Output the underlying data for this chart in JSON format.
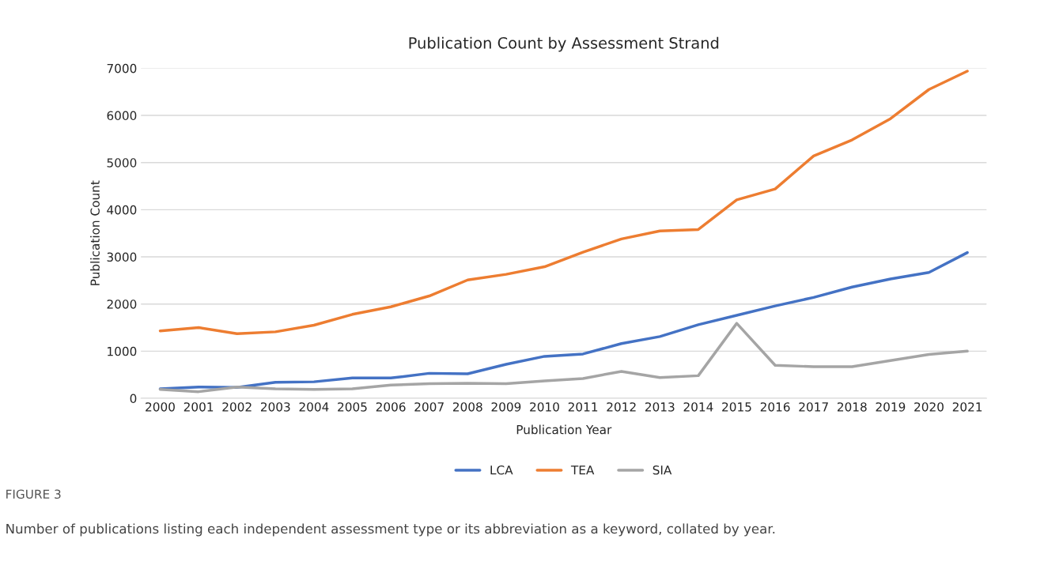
{
  "chart_data": {
    "type": "line",
    "title": "Publication Count by Assessment Strand",
    "xlabel": "Publication Year",
    "ylabel": "Publication Count",
    "categories": [
      "2000",
      "2001",
      "2002",
      "2003",
      "2004",
      "2005",
      "2006",
      "2007",
      "2008",
      "2009",
      "2010",
      "2011",
      "2012",
      "2013",
      "2014",
      "2015",
      "2016",
      "2017",
      "2018",
      "2019",
      "2020",
      "2021"
    ],
    "series": [
      {
        "name": "LCA",
        "color": "#4472c4",
        "values": [
          200,
          240,
          230,
          340,
          350,
          430,
          430,
          530,
          520,
          720,
          890,
          940,
          1160,
          1310,
          1560,
          1760,
          1960,
          2140,
          2360,
          2530,
          2670,
          3090
        ]
      },
      {
        "name": "TEA",
        "color": "#ed7d31",
        "values": [
          1430,
          1500,
          1370,
          1410,
          1550,
          1780,
          1940,
          2170,
          2510,
          2630,
          2790,
          3100,
          3380,
          3550,
          3580,
          4210,
          4440,
          5140,
          5480,
          5930,
          6550,
          6940
        ]
      },
      {
        "name": "SIA",
        "color": "#a5a5a5",
        "values": [
          190,
          140,
          240,
          200,
          190,
          200,
          280,
          310,
          320,
          310,
          370,
          420,
          570,
          440,
          480,
          1590,
          700,
          670,
          670,
          800,
          930,
          1000
        ]
      }
    ],
    "ylim": [
      0,
      7000
    ],
    "yticks": [
      0,
      1000,
      2000,
      3000,
      4000,
      5000,
      6000,
      7000
    ],
    "grid": "y",
    "legend": "bottom",
    "marker": "none",
    "line_style": "solid",
    "annotations": [
      "FIGURE 3",
      "Number of publications listing each independent assessment type or its abbreviation as a keyword, collated by year."
    ]
  }
}
